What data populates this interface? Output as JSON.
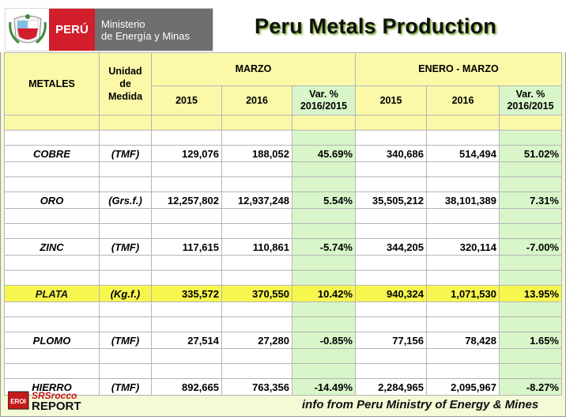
{
  "header": {
    "country": "PERÚ",
    "ministry_line1": "Ministerio",
    "ministry_line2": "de Energía y Minas",
    "title": "Peru Metals Production"
  },
  "table": {
    "col_metales": "METALES",
    "col_unidad": "Unidad de Medida",
    "group_marzo": "MARZO",
    "group_enero_marzo": "ENERO - MARZO",
    "sub_2015": "2015",
    "sub_2016": "2016",
    "sub_var": "Var. % 2016/2015",
    "rows": [
      {
        "metal": "COBRE",
        "unit": "(TMF)",
        "m2015": "129,076",
        "m2016": "188,052",
        "mvar": "45.69%",
        "e2015": "340,686",
        "e2016": "514,494",
        "evar": "51.02%"
      },
      {
        "metal": "ORO",
        "unit": "(Grs.f.)",
        "m2015": "12,257,802",
        "m2016": "12,937,248",
        "mvar": "5.54%",
        "e2015": "35,505,212",
        "e2016": "38,101,389",
        "evar": "7.31%"
      },
      {
        "metal": "ZINC",
        "unit": "(TMF)",
        "m2015": "117,615",
        "m2016": "110,861",
        "mvar": "-5.74%",
        "e2015": "344,205",
        "e2016": "320,114",
        "evar": "-7.00%"
      },
      {
        "metal": "PLATA",
        "unit": "(Kg.f.)",
        "m2015": "335,572",
        "m2016": "370,550",
        "mvar": "10.42%",
        "e2015": "940,324",
        "e2016": "1,071,530",
        "evar": "13.95%"
      },
      {
        "metal": "PLOMO",
        "unit": "(TMF)",
        "m2015": "27,514",
        "m2016": "27,280",
        "mvar": "-0.85%",
        "e2015": "77,156",
        "e2016": "78,428",
        "evar": "1.65%"
      },
      {
        "metal": "HIERRO",
        "unit": "(TMF)",
        "m2015": "892,665",
        "m2016": "763,356",
        "mvar": "-14.49%",
        "e2015": "2,284,965",
        "e2016": "2,095,967",
        "evar": "-8.27%"
      }
    ]
  },
  "footer": {
    "logo_badge": "EROI",
    "logo_line1": "SRSrocco",
    "logo_line2": "REPORT",
    "source": "info from Peru Ministry of Energy & Mines"
  },
  "colors": {
    "header_yellow": "#fbf9a8",
    "var_green": "#d8f6c9",
    "highlight": "#f7f64f",
    "peru_red": "#d21e2b"
  }
}
